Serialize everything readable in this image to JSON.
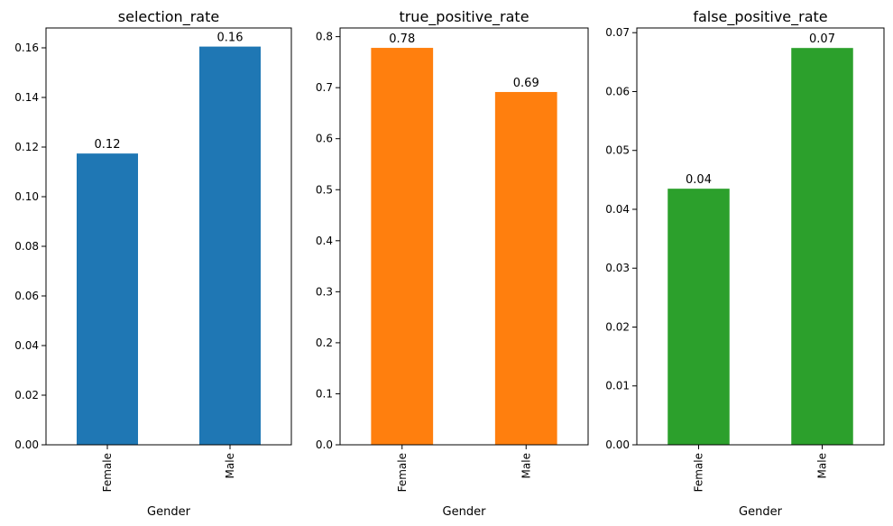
{
  "chart_data": [
    {
      "type": "bar",
      "title": "selection_rate",
      "xlabel": "Gender",
      "ylabel": "",
      "categories": [
        "Female",
        "Male"
      ],
      "values": [
        0.1174,
        0.1605
      ],
      "data_labels": [
        "0.12",
        "0.16"
      ],
      "ylim": [
        0,
        0.168
      ],
      "yticks": [
        0,
        0.02,
        0.04,
        0.06,
        0.08,
        0.1,
        0.12,
        0.14,
        0.16
      ],
      "ytick_labels": [
        "0.00",
        "0.02",
        "0.04",
        "0.06",
        "0.08",
        "0.10",
        "0.12",
        "0.14",
        "0.16"
      ],
      "color": "#1f77b4",
      "grid": false
    },
    {
      "type": "bar",
      "title": "true_positive_rate",
      "xlabel": "Gender",
      "ylabel": "",
      "categories": [
        "Female",
        "Male"
      ],
      "values": [
        0.778,
        0.6915
      ],
      "data_labels": [
        "0.78",
        "0.69"
      ],
      "ylim": [
        0,
        0.817
      ],
      "yticks": [
        0,
        0.1,
        0.2,
        0.3,
        0.4,
        0.5,
        0.6,
        0.7,
        0.8
      ],
      "ytick_labels": [
        "0.0",
        "0.1",
        "0.2",
        "0.3",
        "0.4",
        "0.5",
        "0.6",
        "0.7",
        "0.8"
      ],
      "color": "#ff7f0e",
      "grid": false
    },
    {
      "type": "bar",
      "title": "false_positive_rate",
      "xlabel": "Gender",
      "ylabel": "",
      "categories": [
        "Female",
        "Male"
      ],
      "values": [
        0.0435,
        0.0674
      ],
      "data_labels": [
        "0.04",
        "0.07"
      ],
      "ylim": [
        0,
        0.0708
      ],
      "yticks": [
        0,
        0.01,
        0.02,
        0.03,
        0.04,
        0.05,
        0.06,
        0.07
      ],
      "ytick_labels": [
        "0.00",
        "0.01",
        "0.02",
        "0.03",
        "0.04",
        "0.05",
        "0.06",
        "0.07"
      ],
      "color": "#2ca02c",
      "grid": false
    }
  ]
}
